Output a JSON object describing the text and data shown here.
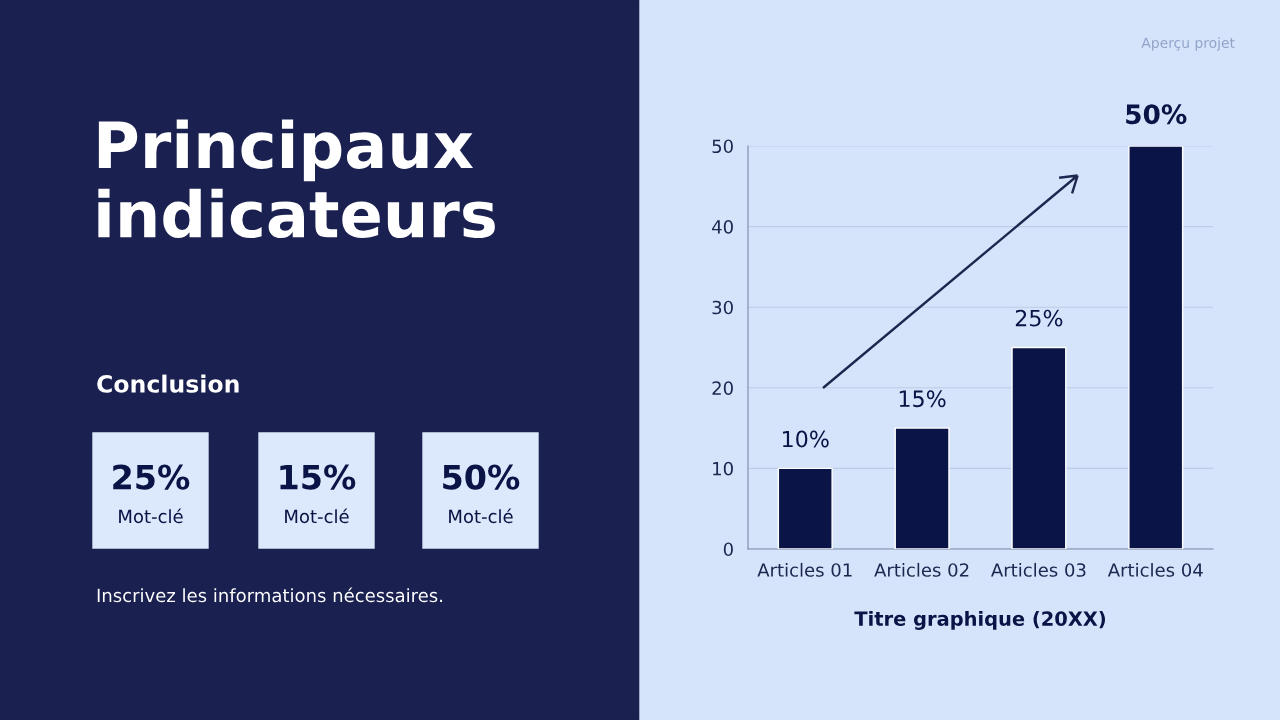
{
  "chart_data": [
    {
      "type": "other",
      "title": "Principaux indicateurs",
      "subtitle": "Conclusion",
      "annotations": [
        "25%",
        "Mot-clé",
        "15%",
        "Mot-clé",
        "50%",
        "Mot-clé",
        "Inscrivez les informations nécessaires.",
        "Aperçu projet"
      ]
    },
    {
      "type": "bar",
      "xlabel": "Titre graphique (20XX)",
      "categories": [
        "Articles 01",
        "Articles 02",
        "Articles 03",
        "Articles 04"
      ],
      "values": [
        10,
        15,
        25,
        50
      ],
      "color": "#0b1446",
      "value_labels": [
        "10%",
        "15%",
        "25%",
        "50%"
      ],
      "ylim": [
        0,
        50
      ],
      "yticks": [
        0,
        10,
        20,
        30,
        40,
        50
      ],
      "grid": "y"
    }
  ]
}
